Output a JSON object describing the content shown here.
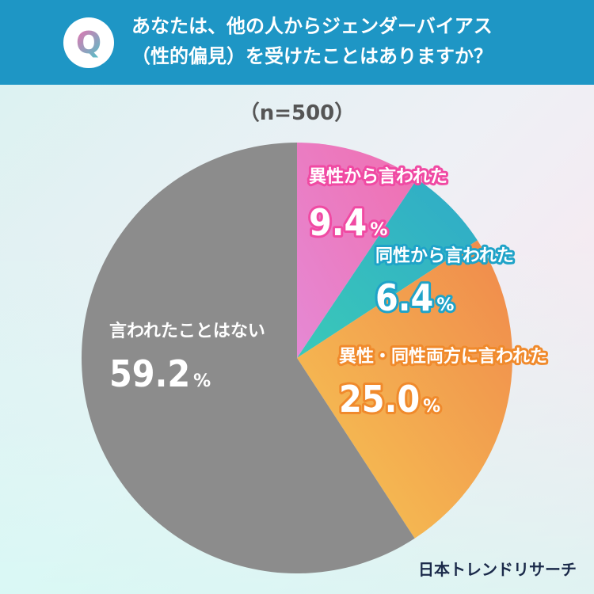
{
  "question": {
    "badge": "Q",
    "line1": "あなたは、他の人からジェンダーバイアス",
    "line2": "（性的偏見）を受けたことはありますか？"
  },
  "sample_size": "（n=500）",
  "logo": "日本トレンドリサーチ",
  "colors": {
    "header": "#1e96c5"
  },
  "chart_data": {
    "type": "pie",
    "slices": [
      {
        "label": "異性から言われた",
        "value": 9.4,
        "display": "9.4",
        "unit": "%",
        "color_from": "#f06fb0",
        "color_to": "#e589d4",
        "label_color": "#f04aa3"
      },
      {
        "label": "同性から言われた",
        "value": 6.4,
        "display": "6.4",
        "unit": "%",
        "color_from": "#2faac8",
        "color_to": "#3ac9b8",
        "label_color": "#1fa3c8"
      },
      {
        "label": "異性・同性両方に言われた",
        "value": 25.0,
        "display": "25.0",
        "unit": "%",
        "color_from": "#f0894c",
        "color_to": "#f6c753",
        "label_color": "#f08a2c"
      },
      {
        "label": "言われたことはない",
        "value": 59.2,
        "display": "59.2",
        "unit": "%",
        "color_from": "#8c8c8c",
        "color_to": "#8c8c8c",
        "label_color": "#8c8c8c"
      }
    ],
    "start": "12 o'clock",
    "direction": "clockwise"
  }
}
